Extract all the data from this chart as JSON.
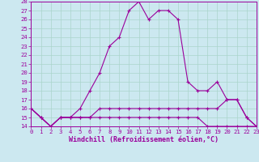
{
  "xlabel": "Windchill (Refroidissement éolien,°C)",
  "x_hours": [
    0,
    1,
    2,
    3,
    4,
    5,
    6,
    7,
    8,
    9,
    10,
    11,
    12,
    13,
    14,
    15,
    16,
    17,
    18,
    19,
    20,
    21,
    22,
    23
  ],
  "line1": [
    16,
    15,
    14,
    15,
    15,
    16,
    18,
    20,
    23,
    24,
    27,
    28,
    26,
    27,
    27,
    26,
    19,
    18,
    18,
    19,
    17,
    17,
    15,
    14
  ],
  "line2": [
    16,
    15,
    14,
    15,
    15,
    15,
    15,
    16,
    16,
    16,
    16,
    16,
    16,
    16,
    16,
    16,
    16,
    16,
    16,
    16,
    17,
    17,
    15,
    14
  ],
  "line3": [
    16,
    15,
    14,
    15,
    15,
    15,
    15,
    15,
    15,
    15,
    15,
    15,
    15,
    15,
    15,
    15,
    15,
    15,
    14,
    14,
    14,
    14,
    14,
    14
  ],
  "line_color": "#9b009b",
  "bg_color": "#cce8f0",
  "grid_color": "#aad4cc",
  "ylim": [
    14,
    28
  ],
  "yticks": [
    14,
    15,
    16,
    17,
    18,
    19,
    20,
    21,
    22,
    23,
    24,
    25,
    26,
    27,
    28
  ],
  "xticks": [
    0,
    1,
    2,
    3,
    4,
    5,
    6,
    7,
    8,
    9,
    10,
    11,
    12,
    13,
    14,
    15,
    16,
    17,
    18,
    19,
    20,
    21,
    22,
    23
  ],
  "marker": "+",
  "markersize": 3.0,
  "linewidth": 0.8,
  "tick_fontsize": 5.2,
  "xlabel_fontsize": 6.0
}
